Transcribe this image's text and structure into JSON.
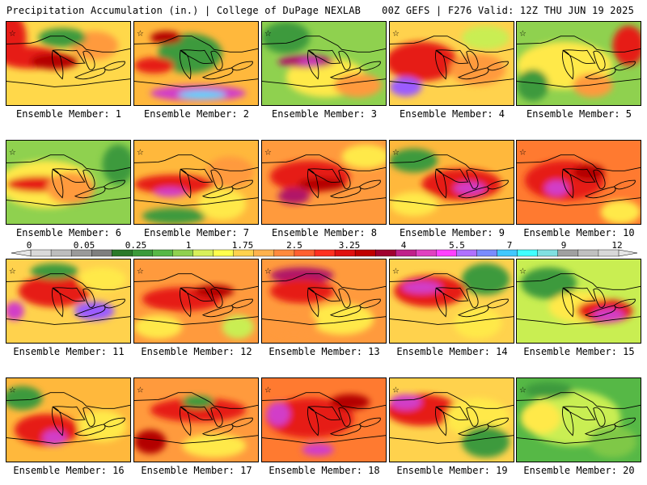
{
  "header": {
    "left_title": "Precipitation Accumulation (in.) | College of DuPage NEXLAB",
    "right_title": "00Z GEFS | F276 Valid: 12Z THU JUN 19 2025"
  },
  "members": [
    {
      "label": "Ensemble Member: 1"
    },
    {
      "label": "Ensemble Member: 2"
    },
    {
      "label": "Ensemble Member: 3"
    },
    {
      "label": "Ensemble Member: 4"
    },
    {
      "label": "Ensemble Member: 5"
    },
    {
      "label": "Ensemble Member: 6"
    },
    {
      "label": "Ensemble Member: 7"
    },
    {
      "label": "Ensemble Member: 8"
    },
    {
      "label": "Ensemble Member: 9"
    },
    {
      "label": "Ensemble Member: 10"
    },
    {
      "label": "Ensemble Member: 11"
    },
    {
      "label": "Ensemble Member: 12"
    },
    {
      "label": "Ensemble Member: 13"
    },
    {
      "label": "Ensemble Member: 14"
    },
    {
      "label": "Ensemble Member: 15"
    },
    {
      "label": "Ensemble Member: 16"
    },
    {
      "label": "Ensemble Member: 17"
    },
    {
      "label": "Ensemble Member: 18"
    },
    {
      "label": "Ensemble Member: 19"
    },
    {
      "label": "Ensemble Member: 20"
    }
  ],
  "colorbar": {
    "tick_labels": [
      "0",
      "0.05",
      "0.25",
      "1",
      "1.75",
      "2.5",
      "3.25",
      "4",
      "5.5",
      "7",
      "9",
      "12"
    ],
    "colors": [
      "#d9d9d9",
      "#bdbdbd",
      "#9a9a9a",
      "#7f7f7f",
      "#2a7a2a",
      "#3a9a3a",
      "#56b846",
      "#8fd14f",
      "#d8f05a",
      "#ffff4d",
      "#ffd24d",
      "#ffb24d",
      "#ff8a3d",
      "#ff6030",
      "#ff3020",
      "#e01010",
      "#c00000",
      "#a00030",
      "#c0208a",
      "#e040c0",
      "#ff40ff",
      "#b070ff",
      "#7a8cff",
      "#40c8ff",
      "#40ffff",
      "#80e0e0",
      "#a0a0a0",
      "#c0c0c0",
      "#d8d8d8"
    ]
  }
}
